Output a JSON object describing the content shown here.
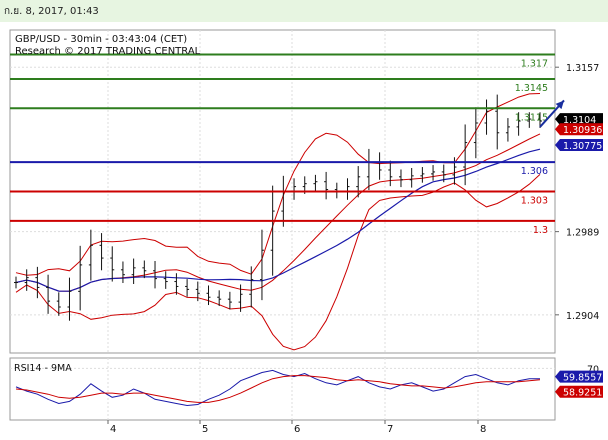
{
  "header": {
    "timestamp": "ก.ย. 8, 2017, 01:43"
  },
  "chart_data": [
    {
      "type": "line",
      "subtype": "candlestick-price",
      "title": "GBP/USD - 30min - 03:43:04 (CET)",
      "subtitle": "Research © 2017 TRADING CENTRAL",
      "x_tick_labels": [
        "4",
        "5",
        "6",
        "7",
        "8"
      ],
      "y_tick_labels": [
        "1.3157",
        "1.2989",
        "1.2904"
      ],
      "ylim": [
        1.2865,
        1.3195
      ],
      "grid": true,
      "price_series": [
        [
          1,
          1.2937
        ],
        [
          2,
          1.2942
        ],
        [
          3,
          1.2932
        ],
        [
          4,
          1.2918
        ],
        [
          5,
          1.2912
        ],
        [
          6,
          1.2928
        ],
        [
          7,
          1.2955
        ],
        [
          8,
          1.2975
        ],
        [
          9,
          1.2962
        ],
        [
          10,
          1.295
        ],
        [
          11,
          1.2945
        ],
        [
          12,
          1.2952
        ],
        [
          13,
          1.2949
        ],
        [
          14,
          1.2941
        ],
        [
          15,
          1.2938
        ],
        [
          16,
          1.2933
        ],
        [
          17,
          1.293
        ],
        [
          18,
          1.2926
        ],
        [
          19,
          1.2922
        ],
        [
          20,
          1.292
        ],
        [
          21,
          1.2917
        ],
        [
          22,
          1.2925
        ],
        [
          23,
          1.294
        ],
        [
          24,
          1.297
        ],
        [
          25,
          1.301
        ],
        [
          26,
          1.303
        ],
        [
          27,
          1.3035
        ],
        [
          28,
          1.3038
        ],
        [
          29,
          1.304
        ],
        [
          30,
          1.3032
        ],
        [
          31,
          1.303
        ],
        [
          32,
          1.3035
        ],
        [
          33,
          1.3045
        ],
        [
          34,
          1.306
        ],
        [
          35,
          1.3052
        ],
        [
          36,
          1.3045
        ],
        [
          37,
          1.3042
        ],
        [
          38,
          1.3046
        ],
        [
          39,
          1.3048
        ],
        [
          40,
          1.305
        ],
        [
          41,
          1.3047
        ],
        [
          42,
          1.3055
        ],
        [
          43,
          1.308
        ],
        [
          44,
          1.31
        ],
        [
          45,
          1.3112
        ],
        [
          46,
          1.309
        ],
        [
          47,
          1.3096
        ],
        [
          48,
          1.3102
        ],
        [
          49,
          1.3104
        ],
        [
          50,
          1.3102
        ]
      ],
      "series": [
        {
          "name": "bollinger-upper",
          "color": "#cc0000"
        },
        {
          "name": "bollinger-middle",
          "color": "#cc0000"
        },
        {
          "name": "bollinger-lower",
          "color": "#cc0000"
        },
        {
          "name": "moving-average",
          "color": "#1a1aaa"
        }
      ],
      "forecast_arrow": {
        "from": [
          50,
          1.3096
        ],
        "to": [
          51,
          1.3123
        ],
        "color": "#1a2f9e"
      },
      "horizontal_levels": [
        {
          "value": 1.317,
          "label": "1.317",
          "color": "#2e7d1e",
          "label_bg": "#ffffff",
          "label_color": "#2e7d1e"
        },
        {
          "value": 1.3145,
          "label": "1.3145",
          "color": "#2e7d1e",
          "label_bg": "#ffffff",
          "label_color": "#2e7d1e"
        },
        {
          "value": 1.3115,
          "label": "1.3115",
          "color": "#2e7d1e",
          "label_bg": "#ffffff",
          "label_color": "#2e7d1e"
        },
        {
          "value": 1.306,
          "label": "1.306",
          "color": "#1a1aaa",
          "label_bg": "#ffffff",
          "label_color": "#1a1aaa"
        },
        {
          "value": 1.303,
          "label": "1.303",
          "color": "#cc0000",
          "label_bg": "#ffffff",
          "label_color": "#cc0000"
        },
        {
          "value": 1.3,
          "label": "1.3",
          "color": "#cc0000",
          "label_bg": "#ffffff",
          "label_color": "#cc0000"
        }
      ],
      "price_tags": [
        {
          "value": 1.3104,
          "label": "1.3104",
          "bg": "#000000",
          "color": "#ffffff"
        },
        {
          "value": 1.30936,
          "label": "1.30936",
          "bg": "#cc0000",
          "color": "#ffffff"
        },
        {
          "value": 1.30775,
          "label": "1.30775",
          "bg": "#1a1aaa",
          "color": "#ffffff"
        }
      ]
    },
    {
      "type": "line",
      "title": "RSI14 - 9MA",
      "y_tick_labels": [
        "70"
      ],
      "ylim": [
        20,
        80
      ],
      "series": [
        {
          "name": "rsi",
          "color": "#1a1aaa",
          "last_value": "59.8557",
          "values": [
            52,
            48,
            45,
            40,
            36,
            38,
            45,
            55,
            48,
            42,
            44,
            50,
            46,
            40,
            38,
            36,
            34,
            35,
            40,
            44,
            50,
            58,
            62,
            66,
            68,
            64,
            62,
            65,
            60,
            56,
            54,
            58,
            62,
            56,
            52,
            50,
            54,
            56,
            52,
            48,
            50,
            56,
            62,
            64,
            60,
            56,
            54,
            58,
            60,
            60
          ]
        },
        {
          "name": "rsi-ma",
          "color": "#cc0000",
          "last_value": "58.9251",
          "values": [
            50,
            49,
            47,
            45,
            42,
            41,
            42,
            44,
            46,
            46,
            45,
            46,
            46,
            44,
            42,
            40,
            38,
            37,
            37,
            39,
            42,
            46,
            51,
            56,
            60,
            62,
            63,
            63,
            62,
            61,
            59,
            58,
            59,
            58,
            57,
            55,
            54,
            53,
            53,
            52,
            51,
            52,
            54,
            56,
            57,
            57,
            57,
            57,
            58,
            59
          ]
        }
      ]
    }
  ]
}
